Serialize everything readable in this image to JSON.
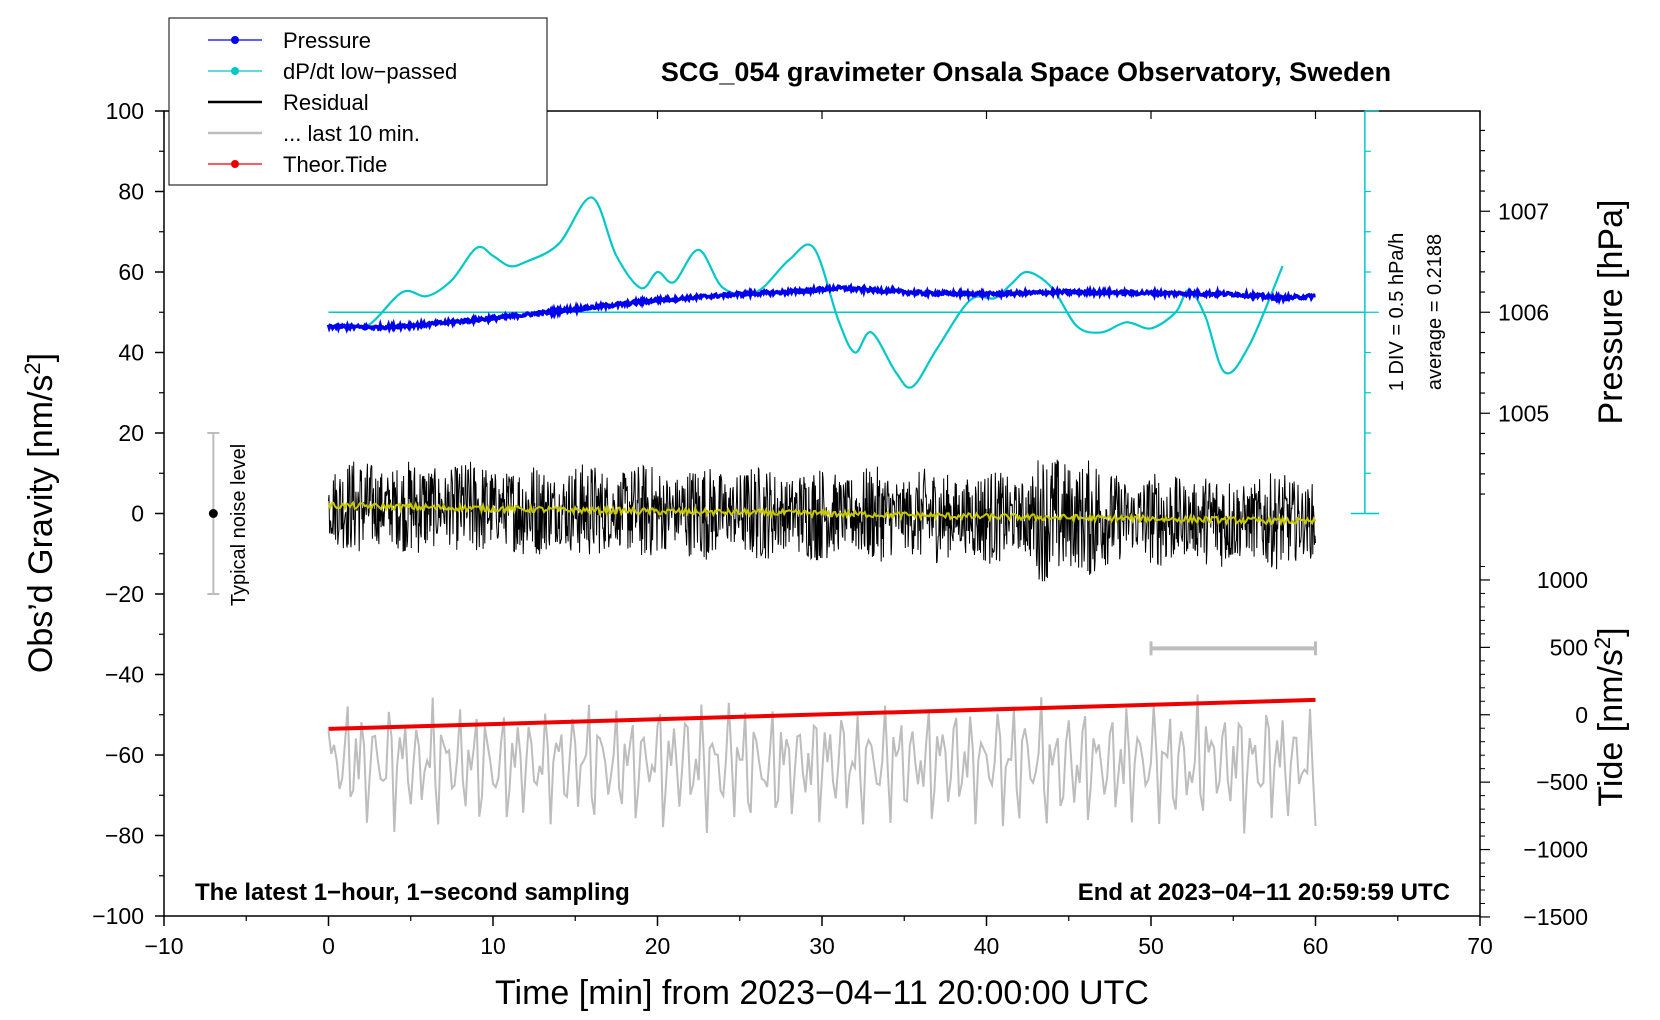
{
  "chart_data": {
    "type": "line",
    "title": "SCG_054 gravimeter Onsala Space Observatory, Sweden",
    "xlabel": "Time [min] from 2023−04−11 20:00:00 UTC",
    "ylabel_left": "Obs’d Gravity [nm/s",
    "ylabel_left_sup": "2",
    "ylabel_left_end": "]",
    "ylabel_pressure": "Pressure [hPa]",
    "ylabel_tide": "Tide [nm/s",
    "ylabel_tide_sup": "2",
    "ylabel_tide_end": "]",
    "xlim": [
      -10,
      70
    ],
    "ylim_left": [
      -100,
      100
    ],
    "x_ticks": [
      "−10",
      "0",
      "10",
      "20",
      "30",
      "40",
      "50",
      "60",
      "70"
    ],
    "y_ticks_left": [
      "100",
      "80",
      "60",
      "40",
      "20",
      "0",
      "−20",
      "−40",
      "−60",
      "−80",
      "−100"
    ],
    "pressure_ticks": [
      "1007",
      "1006",
      "1005"
    ],
    "tide_ticks": [
      "1000",
      "500",
      "0",
      "−500",
      "−1000",
      "−1500"
    ],
    "legend": [
      {
        "label": "Pressure",
        "color": "#0000ee",
        "marker": true
      },
      {
        "label": "dP/dt low−passed",
        "color": "#00c8c8",
        "marker": true
      },
      {
        "label": "Residual",
        "color": "#000000",
        "marker": false
      },
      {
        "label": "... last 10 min.",
        "color": "#bdbdbd",
        "marker": false
      },
      {
        "label": "Theor.Tide",
        "color": "#ee0000",
        "marker": true
      }
    ],
    "annotations": {
      "left_bottom": "The latest 1−hour, 1−second sampling",
      "right_bottom": "End at 2023−04−11 20:59:59 UTC",
      "noise": "Typical noise level",
      "div_label": "1 DIV = 0.5 hPa/h",
      "average_label": "average = 0.2188"
    },
    "noise_level": {
      "x": -7,
      "y": 0,
      "range": [
        -20,
        20
      ]
    },
    "last_10min_range": [
      50,
      60
    ],
    "pressure_hpa": {
      "x": [
        0,
        3,
        6,
        10,
        15,
        20,
        25,
        28,
        31,
        33,
        36,
        40,
        45,
        50,
        55,
        58,
        60
      ],
      "y": [
        1005.86,
        1005.85,
        1005.88,
        1005.94,
        1006.03,
        1006.12,
        1006.18,
        1006.2,
        1006.24,
        1006.22,
        1006.19,
        1006.18,
        1006.2,
        1006.19,
        1006.18,
        1006.14,
        1006.16
      ]
    },
    "dpdt_low_passed": {
      "x": [
        1.2,
        2.5,
        4.5,
        6,
        7.5,
        9,
        10,
        11,
        12,
        14,
        16,
        17.5,
        19,
        20,
        21,
        22.5,
        24,
        26,
        28,
        29.5,
        31,
        32,
        33,
        34.5,
        35.5,
        37,
        39,
        40.5,
        41.5,
        42.5,
        44,
        45.5,
        47,
        48.5,
        50,
        51.5,
        52.3,
        53.3,
        54.5,
        56,
        58
      ],
      "y": [
        47,
        47,
        55,
        54,
        58,
        66,
        64,
        61.5,
        62.5,
        67,
        78.5,
        64,
        56,
        60,
        57.5,
        65.5,
        56,
        55,
        63,
        66,
        48,
        40,
        45,
        35,
        31.5,
        41,
        53,
        53.5,
        57,
        60,
        56,
        46.5,
        45,
        47.5,
        46,
        50,
        55.5,
        49,
        35,
        42,
        61.5
      ]
    },
    "dpdt_baseline_y": 50,
    "residual_trend": {
      "x": [
        0,
        10,
        20,
        30,
        40,
        50,
        60
      ],
      "y": [
        2,
        1.2,
        0.5,
        0,
        -0.8,
        -1.3,
        -2
      ]
    },
    "tide_nms2": {
      "x": [
        0,
        60
      ],
      "y": [
        -105,
        110
      ]
    }
  }
}
